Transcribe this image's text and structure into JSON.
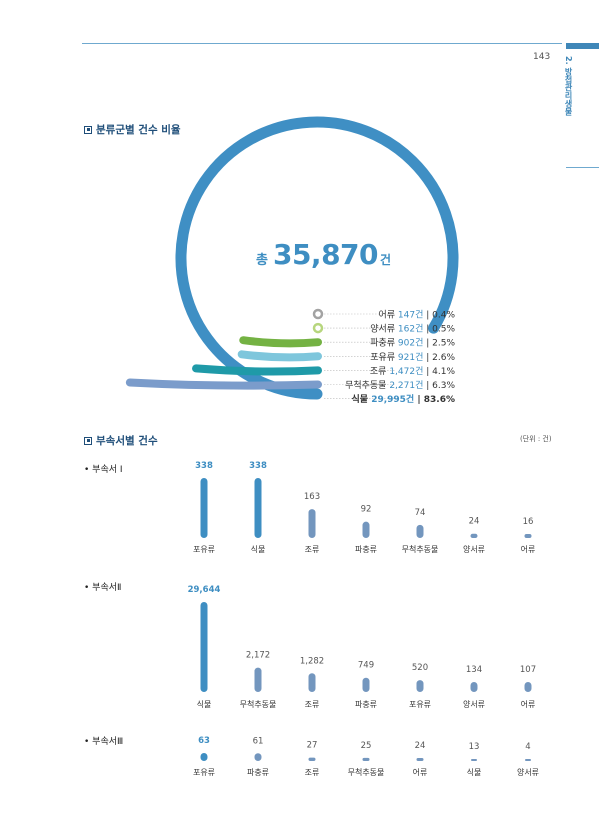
{
  "page": {
    "number": "143",
    "side_text": "2. 방첩관리생물"
  },
  "sections": {
    "ratio_title": "분류군별 건수 비율",
    "dept_title": "부속서별 건수",
    "unit_note": "(단위 : 건)"
  },
  "colors": {
    "bar_highlight": "#3e8ec2",
    "bar_normal": "#7396be",
    "ring": "#3f8fc4",
    "label_value": "#3e8ec2"
  },
  "chart_data": [
    {
      "type": "pie",
      "title": "분류군별 건수 비율",
      "total": {
        "prefix": "총",
        "value": "35,870",
        "suffix": "건"
      },
      "slices": [
        {
          "name": "어류",
          "count": "147건",
          "percent": "0.4%",
          "value": 147,
          "color": "#a3a3a3"
        },
        {
          "name": "양서류",
          "count": "162건",
          "percent": "0.5%",
          "value": 162,
          "color": "#b7d67e"
        },
        {
          "name": "파충류",
          "count": "902건",
          "percent": "2.5%",
          "value": 902,
          "color": "#74b243"
        },
        {
          "name": "포유류",
          "count": "921건",
          "percent": "2.6%",
          "value": 921,
          "color": "#7ec6dc"
        },
        {
          "name": "조류",
          "count": "1,472건",
          "percent": "4.1%",
          "value": 1472,
          "color": "#1f9aa8"
        },
        {
          "name": "무척추동물",
          "count": "2,271건",
          "percent": "6.3%",
          "value": 2271,
          "color": "#7b9ccb"
        },
        {
          "name": "식물",
          "count": "29,995건",
          "percent": "83.6%",
          "value": 29995,
          "color": "#3f8fc4"
        }
      ]
    },
    {
      "type": "bar",
      "title": "부속서 I",
      "categories": [
        "포유류",
        "식물",
        "조류",
        "파충류",
        "무척추동물",
        "양서류",
        "어류"
      ],
      "values": [
        338,
        338,
        163,
        92,
        74,
        24,
        16
      ],
      "value_labels": [
        "338",
        "338",
        "163",
        "92",
        "74",
        "24",
        "16"
      ],
      "highlight": [
        true,
        true,
        false,
        false,
        false,
        false,
        false
      ]
    },
    {
      "type": "bar",
      "title": "부속서Ⅱ",
      "categories": [
        "식물",
        "무척추동물",
        "조류",
        "파충류",
        "포유류",
        "양서류",
        "어류"
      ],
      "values": [
        29644,
        2172,
        1282,
        749,
        520,
        134,
        107
      ],
      "value_labels": [
        "29,644",
        "2,172",
        "1,282",
        "749",
        "520",
        "134",
        "107"
      ],
      "highlight": [
        true,
        false,
        false,
        false,
        false,
        false,
        false
      ]
    },
    {
      "type": "bar",
      "title": "부속서Ⅲ",
      "categories": [
        "포유류",
        "파충류",
        "조류",
        "무척추동물",
        "어류",
        "식물",
        "양서류"
      ],
      "values": [
        63,
        61,
        27,
        25,
        24,
        13,
        4
      ],
      "value_labels": [
        "63",
        "61",
        "27",
        "25",
        "24",
        "13",
        "4"
      ],
      "highlight": [
        true,
        false,
        false,
        false,
        false,
        false,
        false
      ]
    }
  ]
}
